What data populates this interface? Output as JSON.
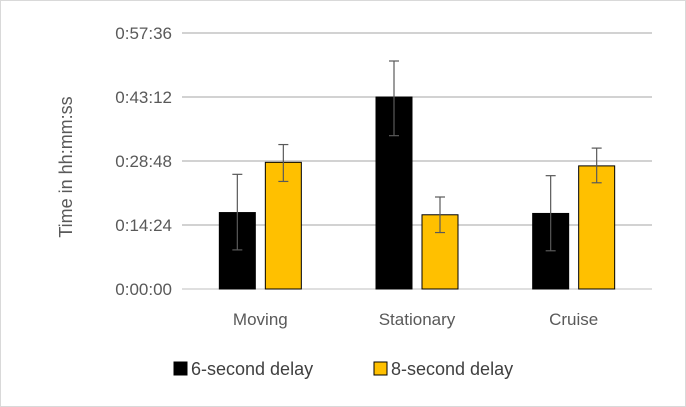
{
  "chart_data": {
    "type": "bar",
    "title": "",
    "xlabel": "",
    "ylabel": "Time in hh:mm:ss",
    "categories": [
      "Moving",
      "Stationary",
      "Cruise"
    ],
    "y_unit": "seconds",
    "ylim": [
      0,
      3456
    ],
    "y_ticks": [
      0,
      864,
      1728,
      2592,
      3456
    ],
    "y_tick_labels": [
      "0:00:00",
      "0:14:24",
      "0:28:48",
      "0:43:12",
      "0:57:36"
    ],
    "grid": true,
    "legend_position": "bottom",
    "series": [
      {
        "name": "6-second delay",
        "color": "#000000",
        "values": [
          1032,
          2592,
          1020
        ],
        "error_low": [
          528,
          2070,
          516
        ],
        "error_high": [
          1548,
          3078,
          1530
        ]
      },
      {
        "name": "8-second delay",
        "color": "#ffc000",
        "values": [
          1710,
          1002,
          1662
        ],
        "error_low": [
          1452,
          762,
          1434
        ],
        "error_high": [
          1950,
          1242,
          1902
        ]
      }
    ]
  }
}
